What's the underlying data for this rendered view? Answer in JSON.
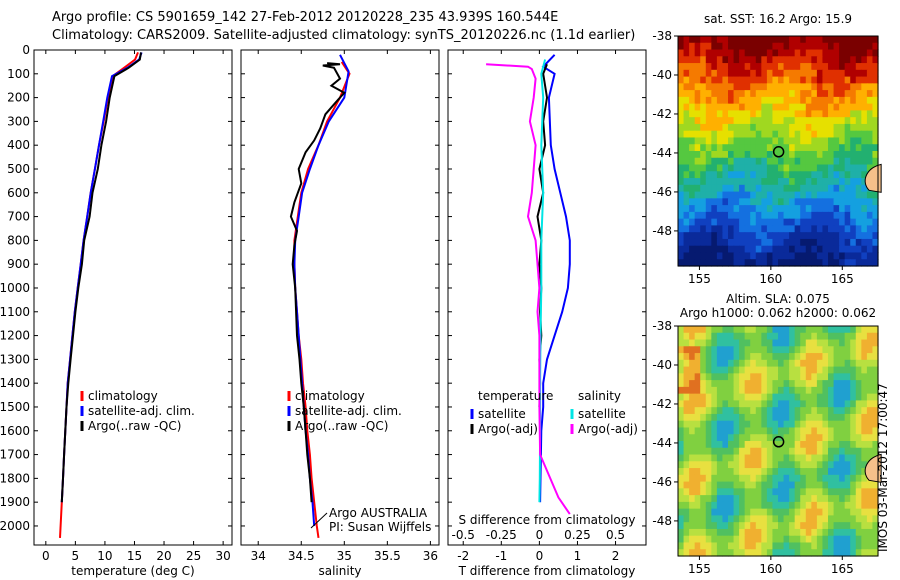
{
  "header": {
    "line1": "Argo profile: CS 5901659_142 27-Feb-2012 20120228_235 43.939S 160.544E",
    "line2": "Climatology: CARS2009. Satellite-adjusted climatology: synTS_20120226.nc (1.1d earlier)"
  },
  "stamp": "IMOS 03-Mar-2012 17:00:47",
  "colors": {
    "climatology": "#ff0000",
    "satellite": "#0000ff",
    "argo": "#000000",
    "sat_diff_s": "#00e5e5",
    "argo_diff_s": "#ff00ff"
  },
  "chart_data": [
    {
      "type": "line",
      "id": "temperature",
      "xlabel": "temperature (deg C)",
      "xlim": [
        -2,
        31.5
      ],
      "xticks": [
        0,
        5,
        10,
        15,
        20,
        25,
        30
      ],
      "ylim": [
        2080,
        0
      ],
      "yticks": [
        0,
        100,
        200,
        300,
        400,
        500,
        600,
        700,
        800,
        900,
        1000,
        1100,
        1200,
        1300,
        1400,
        1500,
        1600,
        1700,
        1800,
        1900,
        2000
      ],
      "grid": false,
      "legend": {
        "placement": "center-right",
        "entries": [
          "climatology",
          "satellite-adj. clim.",
          "Argo(..raw -QC)"
        ]
      },
      "series": [
        {
          "name": "climatology",
          "color": "#ff0000",
          "points": [
            [
              15.6,
              10
            ],
            [
              15.1,
              40
            ],
            [
              13.5,
              70
            ],
            [
              11.3,
              110
            ],
            [
              10.5,
              200
            ],
            [
              9.8,
              300
            ],
            [
              9.0,
              400
            ],
            [
              8.3,
              500
            ],
            [
              7.6,
              600
            ],
            [
              7.0,
              700
            ],
            [
              6.4,
              800
            ],
            [
              5.9,
              900
            ],
            [
              5.4,
              1000
            ],
            [
              4.9,
              1100
            ],
            [
              4.5,
              1200
            ],
            [
              4.1,
              1300
            ],
            [
              3.7,
              1400
            ],
            [
              3.5,
              1500
            ],
            [
              3.3,
              1600
            ],
            [
              3.1,
              1700
            ],
            [
              2.9,
              1800
            ],
            [
              2.7,
              1900
            ],
            [
              2.5,
              2000
            ],
            [
              2.4,
              2050
            ]
          ]
        },
        {
          "name": "satellite-adj. clim.",
          "color": "#0000ff",
          "points": [
            [
              16.2,
              10
            ],
            [
              15.8,
              40
            ],
            [
              13.8,
              75
            ],
            [
              11.2,
              110
            ],
            [
              10.4,
              200
            ],
            [
              9.7,
              300
            ],
            [
              9.0,
              400
            ],
            [
              8.3,
              500
            ],
            [
              7.6,
              600
            ],
            [
              7.0,
              700
            ],
            [
              6.4,
              800
            ],
            [
              5.9,
              900
            ],
            [
              5.4,
              1000
            ],
            [
              4.9,
              1100
            ],
            [
              4.5,
              1200
            ],
            [
              4.1,
              1300
            ],
            [
              3.7,
              1400
            ],
            [
              3.5,
              1500
            ],
            [
              3.3,
              1600
            ],
            [
              3.1,
              1700
            ],
            [
              2.9,
              1800
            ],
            [
              2.7,
              1900
            ]
          ]
        },
        {
          "name": "Argo(..raw -QC)",
          "color": "#000000",
          "points": [
            [
              16.1,
              10
            ],
            [
              15.9,
              40
            ],
            [
              14.0,
              75
            ],
            [
              11.6,
              110
            ],
            [
              10.8,
              200
            ],
            [
              10.2,
              300
            ],
            [
              9.4,
              400
            ],
            [
              8.8,
              500
            ],
            [
              7.9,
              600
            ],
            [
              7.4,
              700
            ],
            [
              6.5,
              800
            ],
            [
              6.1,
              900
            ],
            [
              5.5,
              1000
            ],
            [
              5.0,
              1100
            ],
            [
              4.6,
              1200
            ],
            [
              4.2,
              1300
            ],
            [
              3.8,
              1400
            ],
            [
              3.5,
              1500
            ],
            [
              3.3,
              1600
            ],
            [
              3.1,
              1700
            ],
            [
              2.9,
              1800
            ],
            [
              2.7,
              1900
            ]
          ]
        }
      ]
    },
    {
      "type": "line",
      "id": "salinity",
      "xlabel": "salinity",
      "xlim": [
        33.8,
        36.1
      ],
      "xticks": [
        34,
        34.5,
        35,
        35.5,
        36
      ],
      "ylim": [
        2080,
        0
      ],
      "grid": false,
      "legend": {
        "placement": "center-right",
        "entries": [
          "climatology",
          "satellite-adj. clim.",
          "Argo(..raw -QC)"
        ]
      },
      "annotations": [
        "Argo AUSTRALIA",
        "PI: Susan Wijffels"
      ],
      "series": [
        {
          "name": "climatology",
          "color": "#ff0000",
          "points": [
            [
              34.97,
              50
            ],
            [
              35.06,
              100
            ],
            [
              34.95,
              200
            ],
            [
              34.8,
              300
            ],
            [
              34.7,
              400
            ],
            [
              34.58,
              500
            ],
            [
              34.5,
              600
            ],
            [
              34.46,
              700
            ],
            [
              34.42,
              800
            ],
            [
              34.42,
              900
            ],
            [
              34.43,
              1000
            ],
            [
              34.45,
              1100
            ],
            [
              34.47,
              1200
            ],
            [
              34.5,
              1300
            ],
            [
              34.52,
              1400
            ],
            [
              34.55,
              1500
            ],
            [
              34.57,
              1600
            ],
            [
              34.6,
              1700
            ],
            [
              34.62,
              1800
            ],
            [
              34.65,
              1900
            ],
            [
              34.68,
              2000
            ],
            [
              34.7,
              2050
            ]
          ]
        },
        {
          "name": "satellite-adj. clim.",
          "color": "#0000ff",
          "points": [
            [
              34.95,
              20
            ],
            [
              35.05,
              90
            ],
            [
              35.0,
              200
            ],
            [
              34.82,
              300
            ],
            [
              34.7,
              400
            ],
            [
              34.6,
              500
            ],
            [
              34.51,
              600
            ],
            [
              34.47,
              700
            ],
            [
              34.43,
              800
            ],
            [
              34.42,
              900
            ],
            [
              34.43,
              1000
            ],
            [
              34.45,
              1100
            ],
            [
              34.47,
              1200
            ],
            [
              34.49,
              1300
            ],
            [
              34.51,
              1400
            ],
            [
              34.53,
              1500
            ],
            [
              34.55,
              1600
            ],
            [
              34.58,
              1700
            ],
            [
              34.6,
              1800
            ],
            [
              34.63,
              1900
            ],
            [
              34.65,
              2000
            ]
          ]
        },
        {
          "name": "Argo(..raw -QC)",
          "color": "#000000",
          "points": [
            [
              34.8,
              55
            ],
            [
              34.95,
              60
            ],
            [
              34.75,
              65
            ],
            [
              34.88,
              75
            ],
            [
              34.95,
              120
            ],
            [
              34.85,
              150
            ],
            [
              35.0,
              180
            ],
            [
              34.9,
              220
            ],
            [
              34.78,
              270
            ],
            [
              34.72,
              330
            ],
            [
              34.65,
              380
            ],
            [
              34.55,
              430
            ],
            [
              34.47,
              500
            ],
            [
              34.5,
              560
            ],
            [
              34.42,
              640
            ],
            [
              34.38,
              700
            ],
            [
              34.45,
              760
            ],
            [
              34.42,
              820
            ],
            [
              34.4,
              900
            ],
            [
              34.43,
              1000
            ],
            [
              34.44,
              1100
            ],
            [
              34.45,
              1200
            ],
            [
              34.48,
              1300
            ],
            [
              34.5,
              1400
            ],
            [
              34.53,
              1500
            ],
            [
              34.55,
              1600
            ],
            [
              34.57,
              1700
            ],
            [
              34.6,
              1800
            ],
            [
              34.62,
              1900
            ]
          ]
        }
      ]
    },
    {
      "type": "line",
      "id": "difference",
      "xlabel": "T difference from climatology",
      "xlabel_top": "S difference from climatology",
      "xlim": [
        -2.4,
        2.8
      ],
      "xticks": [
        -2,
        -1,
        0,
        1,
        2
      ],
      "xticks_s": [
        "-0.5",
        "-0.25",
        "0",
        "0.25",
        "0.5"
      ],
      "ylim": [
        2080,
        0
      ],
      "grid": false,
      "legend": {
        "placement": "center",
        "columns": [
          {
            "title": "temperature",
            "entries": [
              "satellite",
              "Argo(-adj)"
            ]
          },
          {
            "title": "salinity",
            "entries": [
              "satellite",
              "Argo(-adj)"
            ]
          }
        ]
      },
      "series": [
        {
          "name": "satellite",
          "variable": "temperature",
          "color": "#0000ff",
          "points": [
            [
              0.4,
              20
            ],
            [
              0.1,
              70
            ],
            [
              0.4,
              100
            ],
            [
              0.25,
              200
            ],
            [
              0.3,
              400
            ],
            [
              0.4,
              500
            ],
            [
              0.55,
              600
            ],
            [
              0.7,
              700
            ],
            [
              0.8,
              800
            ],
            [
              0.8,
              900
            ],
            [
              0.75,
              1000
            ],
            [
              0.6,
              1100
            ],
            [
              0.4,
              1200
            ],
            [
              0.2,
              1300
            ],
            [
              0.1,
              1400
            ],
            [
              0.1,
              1500
            ],
            [
              0.05,
              1600
            ],
            [
              0.03,
              1800
            ],
            [
              0.02,
              1900
            ]
          ]
        },
        {
          "name": "Argo(-adj)",
          "variable": "temperature",
          "color": "#000000",
          "points": [
            [
              0.2,
              60
            ],
            [
              0.1,
              100
            ],
            [
              0.2,
              200
            ],
            [
              0.1,
              300
            ],
            [
              0.15,
              400
            ],
            [
              0.0,
              500
            ],
            [
              0.1,
              600
            ],
            [
              -0.05,
              700
            ],
            [
              0.05,
              800
            ],
            [
              0.0,
              900
            ],
            [
              0.05,
              1000
            ],
            [
              0.02,
              1100
            ],
            [
              0.05,
              1200
            ],
            [
              0.0,
              1300
            ],
            [
              0.02,
              1400
            ],
            [
              0.0,
              1500
            ]
          ]
        },
        {
          "name": "satellite",
          "variable": "salinity",
          "color": "#00e5e5",
          "points": [
            [
              0.15,
              40
            ],
            [
              0.05,
              100
            ],
            [
              0.1,
              200
            ],
            [
              0.05,
              400
            ],
            [
              0.1,
              600
            ],
            [
              0.05,
              800
            ],
            [
              0.05,
              1000
            ],
            [
              0.03,
              1200
            ],
            [
              0.02,
              1400
            ],
            [
              0.02,
              1600
            ],
            [
              0.01,
              1800
            ],
            [
              0.0,
              1900
            ]
          ]
        },
        {
          "name": "Argo(-adj)",
          "variable": "salinity",
          "color": "#ff00ff",
          "points": [
            [
              -1.4,
              60
            ],
            [
              -0.3,
              70
            ],
            [
              -0.2,
              80
            ],
            [
              -0.1,
              120
            ],
            [
              -0.15,
              200
            ],
            [
              -0.25,
              300
            ],
            [
              -0.1,
              400
            ],
            [
              -0.15,
              500
            ],
            [
              -0.2,
              600
            ],
            [
              -0.3,
              700
            ],
            [
              -0.1,
              800
            ],
            [
              -0.05,
              900
            ],
            [
              0.0,
              1000
            ],
            [
              -0.05,
              1100
            ],
            [
              0.0,
              1200
            ],
            [
              0.0,
              1400
            ],
            [
              0.0,
              1500
            ],
            [
              0.02,
              1700
            ],
            [
              0.5,
              1880
            ],
            [
              0.8,
              1950
            ]
          ]
        }
      ]
    },
    {
      "type": "heatmap",
      "id": "sst_map",
      "title": "sat. SST: 16.2 Argo: 15.9",
      "xlim": [
        153.5,
        167.5
      ],
      "ylim": [
        -49.8,
        -38
      ],
      "xticks": [
        155,
        160,
        165
      ],
      "yticks": [
        -38,
        -40,
        -42,
        -44,
        -46,
        -48
      ],
      "marker": {
        "lon": 160.544,
        "lat": -43.939
      }
    },
    {
      "type": "heatmap",
      "id": "sla_map",
      "title1": "Altim. SLA: 0.075",
      "title2": "Argo h1000: 0.062 h2000: 0.062",
      "xlim": [
        153.5,
        167.5
      ],
      "ylim": [
        -49.8,
        -38
      ],
      "xticks": [
        155,
        160,
        165
      ],
      "yticks": [
        -38,
        -40,
        -42,
        -44,
        -46,
        -48
      ],
      "marker": {
        "lon": 160.544,
        "lat": -43.939
      }
    }
  ]
}
